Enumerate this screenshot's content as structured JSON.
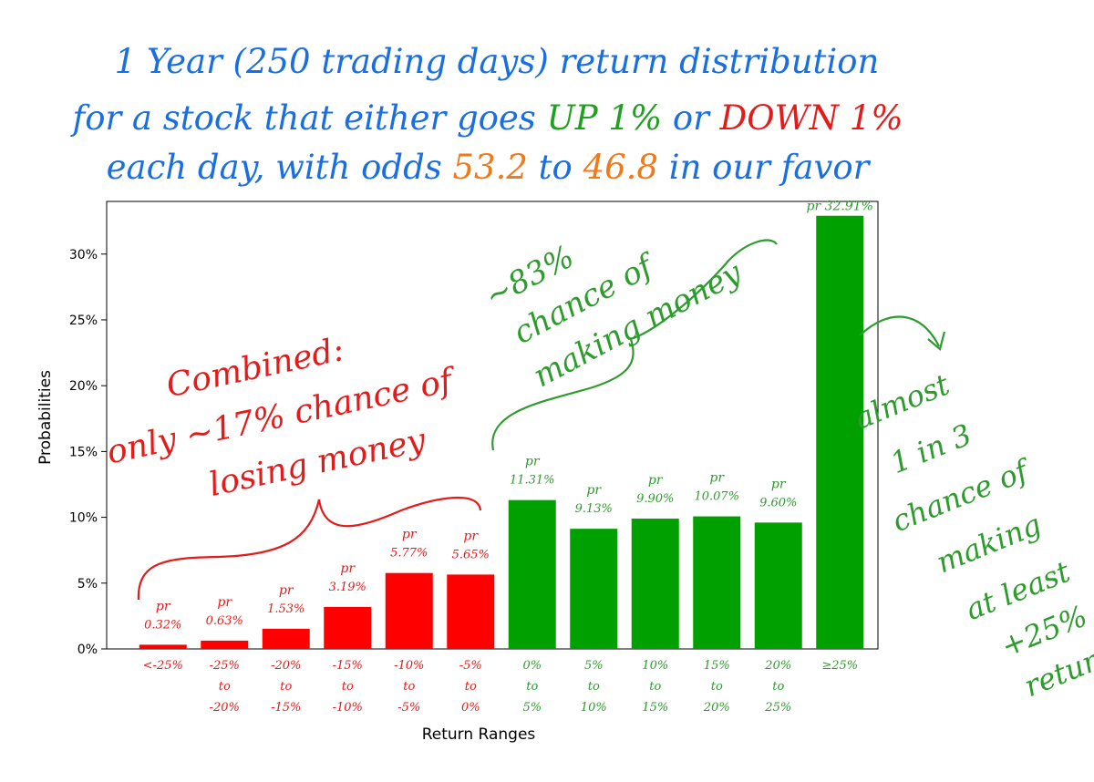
{
  "title": {
    "line1": "1 Year (250 trading days) return distribution",
    "line2_prefix": "for a stock that either goes",
    "line2_up": "UP 1%",
    "line2_mid": "or",
    "line2_down": "DOWN 1%",
    "line3_prefix": "each day, with odds",
    "line3_odds_a": "53.2",
    "line3_mid": "to",
    "line3_odds_b": "46.8",
    "line3_suffix": "in our favor"
  },
  "annotations": {
    "losing": [
      "Combined:",
      "only ~17% chance of",
      "losing money"
    ],
    "making": [
      "~83%",
      "chance of",
      "making money"
    ],
    "one_in_three": [
      "almost",
      "1 in 3",
      "chance of",
      "making",
      "at least",
      "+25%",
      "return"
    ]
  },
  "colors": {
    "title_blue": "#1a6fe0",
    "orange": "#f07a1a",
    "loss_red": "#ff0000",
    "gain_green": "#00a000",
    "annotation_red": "#e51b1b",
    "annotation_green": "#2e9b2e"
  },
  "chart_data": {
    "type": "bar",
    "xlabel": "Return Ranges",
    "ylabel": "Probabilities",
    "ylim": [
      0,
      34
    ],
    "yticks": [
      0,
      5,
      10,
      15,
      20,
      25,
      30
    ],
    "ytick_labels": [
      "0%",
      "5%",
      "10%",
      "15%",
      "20%",
      "25%",
      "30%"
    ],
    "categories": [
      [
        "<-25%"
      ],
      [
        "-25%",
        "to",
        "-20%"
      ],
      [
        "-20%",
        "to",
        "-15%"
      ],
      [
        "-15%",
        "to",
        "-10%"
      ],
      [
        "-10%",
        "to",
        "-5%"
      ],
      [
        "-5%",
        "to",
        "0%"
      ],
      [
        "0%",
        "to",
        "5%"
      ],
      [
        "5%",
        "to",
        "10%"
      ],
      [
        "10%",
        "to",
        "15%"
      ],
      [
        "15%",
        "to",
        "20%"
      ],
      [
        "20%",
        "to",
        "25%"
      ],
      [
        "≥25%"
      ]
    ],
    "values": [
      0.32,
      0.63,
      1.53,
      3.19,
      5.77,
      5.65,
      11.31,
      9.13,
      9.9,
      10.07,
      9.6,
      32.91
    ],
    "value_labels": [
      "0.32%",
      "0.63%",
      "1.53%",
      "3.19%",
      "5.77%",
      "5.65%",
      "11.31%",
      "9.13%",
      "9.90%",
      "10.07%",
      "9.60%",
      "32.91%"
    ],
    "label_prefix": "pr",
    "bar_groups": [
      "loss",
      "loss",
      "loss",
      "loss",
      "loss",
      "loss",
      "gain",
      "gain",
      "gain",
      "gain",
      "gain",
      "gain"
    ],
    "grid": false
  }
}
